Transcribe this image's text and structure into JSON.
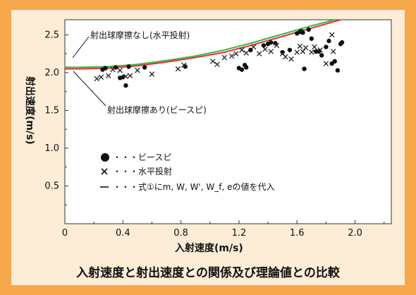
{
  "caption": "入射速度と射出速度との関係及び理論値との比較",
  "colors": {
    "frame": "#f6a84b",
    "panel": "#fdecd6",
    "green_curve": "#3cb53c",
    "red_curve": "#e0303a"
  },
  "chart_data": {
    "type": "scatter",
    "xlabel": "入射速度(m/s)",
    "ylabel": "射出速度(m/s)",
    "xlim": [
      0,
      2.25
    ],
    "ylim": [
      0,
      2.7
    ],
    "x_ticks": [
      0,
      0.4,
      0.8,
      1.2,
      1.6,
      2.0
    ],
    "y_ticks": [
      0.5,
      1.0,
      1.5,
      2.0,
      2.5
    ],
    "x_tick_labels": [
      "0",
      "0.4",
      "0.8",
      "1.2",
      "1.6",
      "2.0"
    ],
    "y_tick_labels": [
      "0.5",
      "1.0",
      "1.5",
      "2.0",
      "2.5"
    ],
    "grid": false,
    "legend": {
      "placement": "lower-left",
      "entries": [
        {
          "marker": "dot",
          "label": "・・・ビースピ"
        },
        {
          "marker": "cross",
          "label": "・・・水平投射"
        },
        {
          "marker": "line",
          "label": "・・・式①にm, W, W', W_f, eの値を代入"
        }
      ]
    },
    "annotations": [
      {
        "text": "射出球摩擦なし(水平投射)",
        "target_series": "green"
      },
      {
        "text": "射出球摩擦あり(ビースピ)",
        "target_series": "red"
      }
    ],
    "series": [
      {
        "marker": "line",
        "color": "#3cb53c",
        "x": [
          0.1,
          0.3,
          0.5,
          0.7,
          0.9,
          1.1,
          1.3,
          1.5,
          1.7,
          1.9
        ],
        "y": [
          2.07,
          2.08,
          2.11,
          2.16,
          2.22,
          2.3,
          2.4,
          2.51,
          2.62,
          2.72
        ]
      },
      {
        "marker": "line",
        "color": "#e0303a",
        "x": [
          0.1,
          0.3,
          0.5,
          0.7,
          0.9,
          1.1,
          1.3,
          1.5,
          1.7,
          1.9
        ],
        "y": [
          2.05,
          2.06,
          2.09,
          2.14,
          2.2,
          2.27,
          2.37,
          2.48,
          2.59,
          2.7
        ]
      },
      {
        "name": "ビースピ",
        "marker": "dot",
        "x": [
          0.26,
          0.28,
          0.35,
          0.38,
          0.4,
          0.42,
          0.44,
          0.55,
          0.83,
          1.2,
          1.22,
          1.24,
          1.25,
          1.28,
          1.37,
          1.4,
          1.42,
          1.45,
          1.5,
          1.55,
          1.6,
          1.62,
          1.63,
          1.64,
          1.65,
          1.68,
          1.7,
          1.73,
          1.75,
          1.77,
          1.8,
          1.82,
          1.84,
          1.86,
          1.88,
          1.9,
          1.91
        ],
        "y": [
          2.04,
          2.06,
          2.07,
          1.93,
          1.94,
          1.83,
          2.08,
          2.07,
          2.08,
          2.06,
          2.04,
          2.1,
          2.07,
          2.3,
          2.36,
          2.38,
          2.4,
          2.39,
          2.27,
          2.3,
          2.52,
          2.54,
          2.55,
          2.53,
          2.05,
          2.57,
          2.45,
          2.28,
          2.28,
          2.23,
          2.34,
          2.42,
          2.12,
          2.15,
          2.03,
          2.38,
          2.4
        ]
      },
      {
        "name": "水平投射",
        "marker": "cross",
        "x": [
          0.22,
          0.25,
          0.3,
          0.33,
          0.38,
          0.42,
          0.45,
          0.5,
          0.6,
          0.78,
          0.82,
          1.02,
          1.05,
          1.1,
          1.15,
          1.18,
          1.22,
          1.25,
          1.3,
          1.34,
          1.38,
          1.42,
          1.46,
          1.5,
          1.52,
          1.56,
          1.6,
          1.62,
          1.64,
          1.66,
          1.7,
          1.72,
          1.76,
          1.8,
          1.84,
          1.85
        ],
        "y": [
          1.92,
          1.94,
          1.96,
          2.04,
          2.03,
          1.95,
          1.96,
          2.03,
          1.98,
          2.05,
          2.1,
          2.15,
          2.11,
          2.2,
          2.22,
          2.25,
          2.3,
          2.26,
          2.34,
          2.25,
          2.31,
          2.28,
          2.36,
          2.25,
          2.21,
          2.18,
          2.27,
          2.35,
          2.28,
          2.33,
          2.27,
          2.34,
          2.3,
          2.12,
          2.5,
          2.28
        ]
      }
    ]
  }
}
